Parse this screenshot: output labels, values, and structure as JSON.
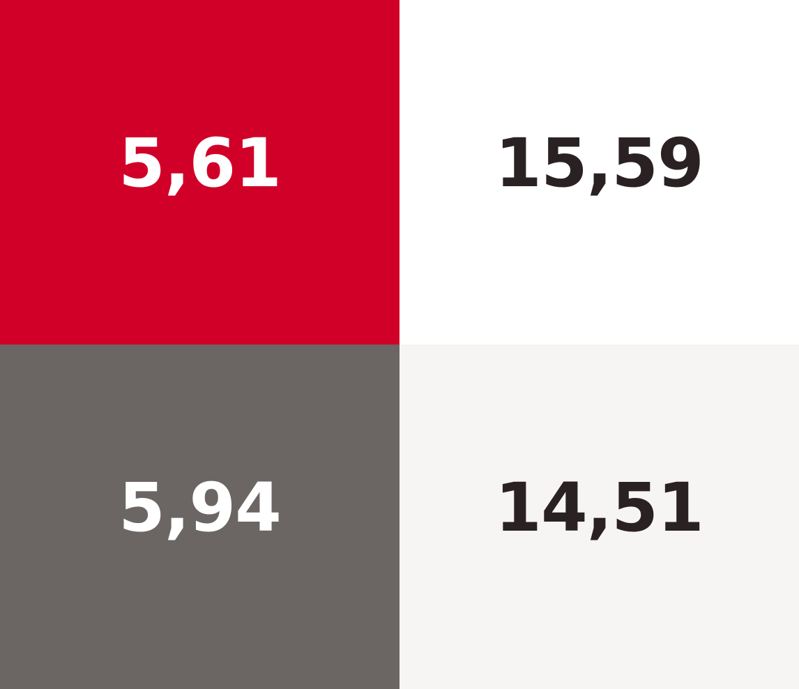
{
  "cells": [
    {
      "value": "5,61",
      "background": "#D10028",
      "text_color": "#FFFFFF"
    },
    {
      "value": "15,59",
      "background": "#FFFFFF",
      "text_color": "#2A2222"
    },
    {
      "value": "5,94",
      "background": "#6B6564",
      "text_color": "#FFFFFF"
    },
    {
      "value": "14,51",
      "background": "#F7F4F4",
      "text_color": "#2A2222"
    }
  ]
}
